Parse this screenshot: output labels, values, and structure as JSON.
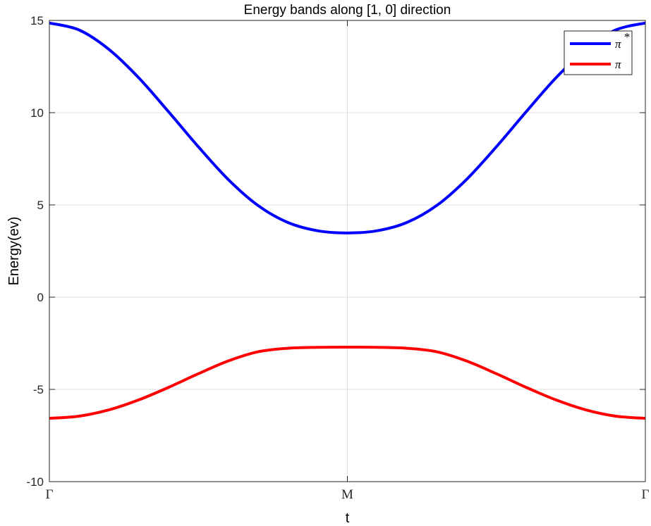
{
  "chart_data": {
    "type": "line",
    "title": "Energy bands along [1, 0] direction",
    "xlabel": "t",
    "ylabel": "Energy(ev)",
    "xlim": [
      0,
      2
    ],
    "ylim": [
      -10,
      15
    ],
    "yticks": [
      15,
      10,
      5,
      0,
      -5,
      -10
    ],
    "ytick_labels": [
      "15",
      "10",
      "5",
      "0",
      "-5",
      "-10"
    ],
    "xticks": [
      0,
      1,
      2
    ],
    "xtick_labels": [
      "Γ",
      "M",
      "Γ"
    ],
    "grid": true,
    "legend_position": "top-right",
    "x": [
      0,
      0.1,
      0.2,
      0.3,
      0.4,
      0.5,
      0.6,
      0.7,
      0.8,
      0.9,
      1.0,
      1.1,
      1.2,
      1.3,
      1.4,
      1.5,
      1.6,
      1.7,
      1.8,
      1.9,
      2.0
    ],
    "series": [
      {
        "name": "π",
        "legend_superscript": "*",
        "color": "#0000ff",
        "values": [
          14.86,
          14.48,
          13.43,
          11.89,
          10.05,
          8.15,
          6.38,
          4.97,
          4.05,
          3.6,
          3.48,
          3.6,
          4.05,
          4.97,
          6.38,
          8.15,
          10.05,
          11.89,
          13.43,
          14.48,
          14.86
        ]
      },
      {
        "name": "π",
        "legend_superscript": "",
        "color": "#ff0000",
        "values": [
          -6.57,
          -6.45,
          -6.11,
          -5.57,
          -4.89,
          -4.15,
          -3.46,
          -2.96,
          -2.77,
          -2.72,
          -2.71,
          -2.72,
          -2.77,
          -2.96,
          -3.46,
          -4.15,
          -4.89,
          -5.57,
          -6.11,
          -6.45,
          -6.57
        ]
      }
    ]
  }
}
